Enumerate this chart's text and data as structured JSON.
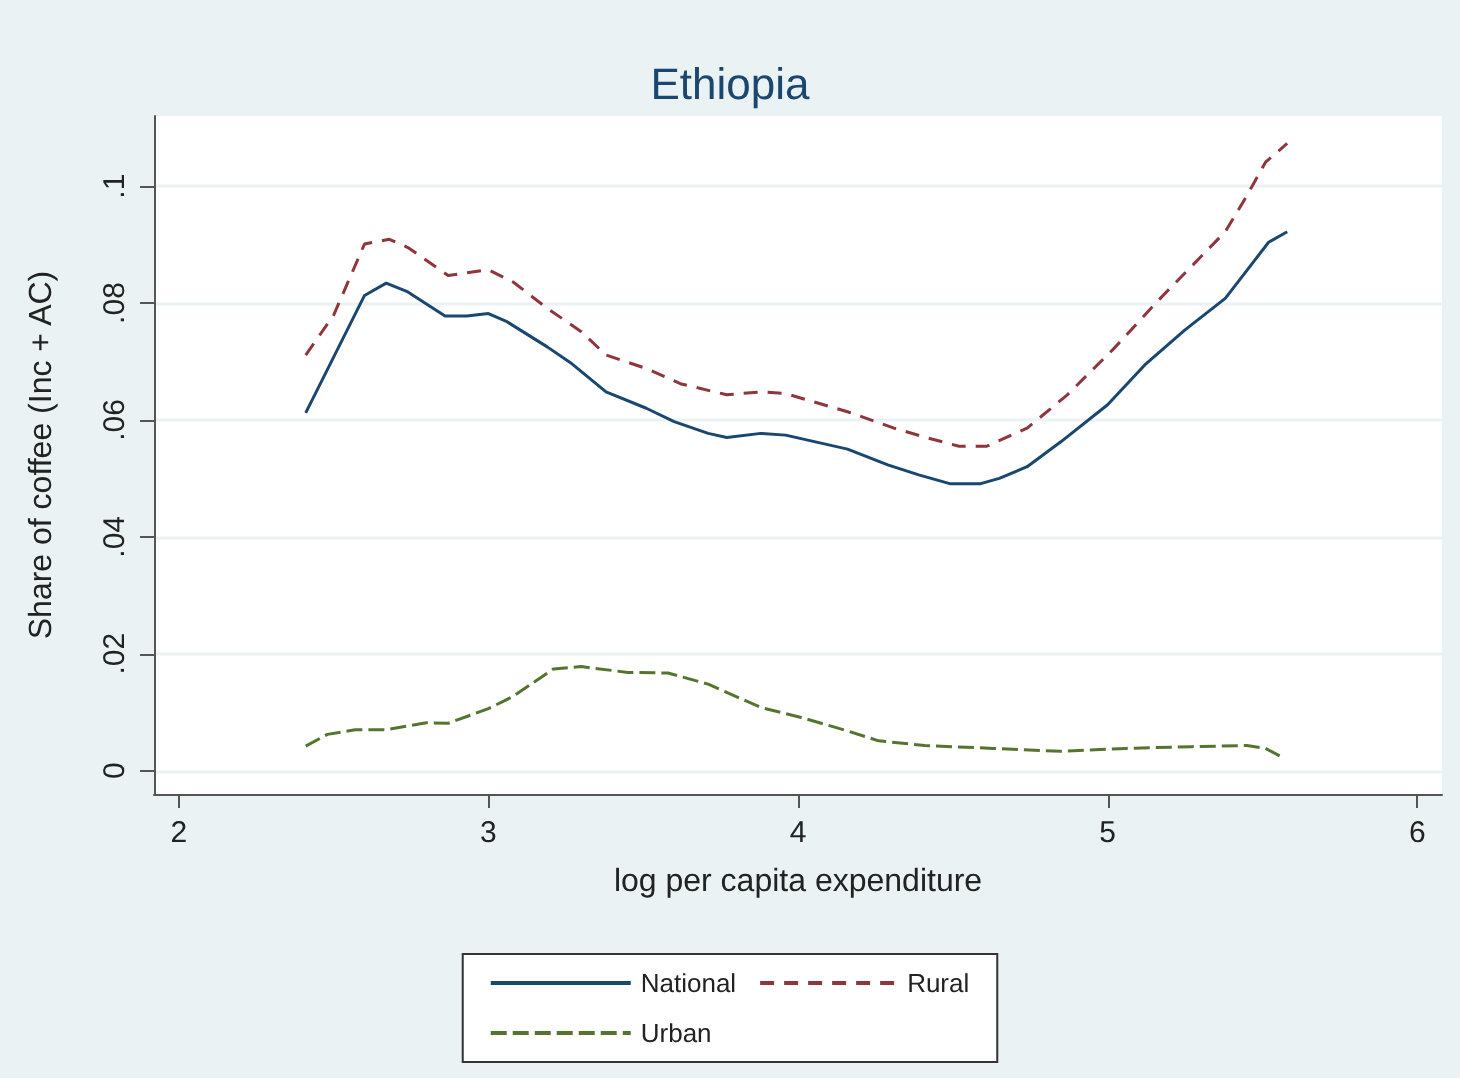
{
  "chart_data": {
    "type": "line",
    "title": "Ethiopia",
    "xlabel": "log per capita expenditure",
    "ylabel": "Share of coffee (Inc + AC)",
    "xlim": [
      1.92,
      6.08
    ],
    "xticks": [
      2,
      3,
      4,
      5,
      6
    ],
    "ylim": [
      -0.004,
      0.112
    ],
    "yticks": [
      {
        "value": 0,
        "label": "0"
      },
      {
        "value": 0.02,
        "label": ".02"
      },
      {
        "value": 0.04,
        "label": ".04"
      },
      {
        "value": 0.06,
        "label": ".06"
      },
      {
        "value": 0.08,
        "label": ".08"
      },
      {
        "value": 0.1,
        "label": ".1"
      }
    ],
    "grid": "y",
    "legend": "bottom",
    "marker": "none",
    "series": [
      {
        "name": "National",
        "color": "#1a476f",
        "line_style": "solid",
        "x": [
          2.41,
          2.6,
          2.67,
          2.74,
          2.86,
          2.93,
          3.0,
          3.06,
          3.19,
          3.27,
          3.38,
          3.51,
          3.6,
          3.71,
          3.77,
          3.88,
          3.96,
          4.16,
          4.29,
          4.39,
          4.49,
          4.59,
          4.65,
          4.74,
          4.85,
          5.0,
          5.12,
          5.25,
          5.38,
          5.45,
          5.52,
          5.58
        ],
        "values": [
          0.0612,
          0.0813,
          0.0834,
          0.0819,
          0.0778,
          0.0778,
          0.0782,
          0.0768,
          0.0725,
          0.0696,
          0.0648,
          0.062,
          0.0597,
          0.0577,
          0.057,
          0.0577,
          0.0574,
          0.055,
          0.0523,
          0.0506,
          0.0491,
          0.0491,
          0.05,
          0.052,
          0.0563,
          0.0626,
          0.0694,
          0.0754,
          0.0808,
          0.0856,
          0.0904,
          0.0922
        ]
      },
      {
        "name": "Rural",
        "color": "#90353b",
        "line_style": "dashed",
        "x": [
          2.41,
          2.5,
          2.6,
          2.68,
          2.74,
          2.87,
          3.0,
          3.08,
          3.19,
          3.3,
          3.38,
          3.51,
          3.62,
          3.77,
          3.88,
          3.96,
          4.16,
          4.31,
          4.42,
          4.52,
          4.61,
          4.74,
          4.87,
          5.02,
          5.17,
          5.38,
          5.45,
          5.51,
          5.58
        ],
        "values": [
          0.0711,
          0.0779,
          0.0901,
          0.0909,
          0.0895,
          0.0847,
          0.0857,
          0.0836,
          0.0791,
          0.0751,
          0.0711,
          0.0688,
          0.0662,
          0.0643,
          0.0648,
          0.0645,
          0.0614,
          0.0586,
          0.0569,
          0.0555,
          0.0555,
          0.0586,
          0.0643,
          0.0722,
          0.0808,
          0.0922,
          0.0984,
          0.1041,
          0.1073
        ]
      },
      {
        "name": "Urban",
        "color": "#55752f",
        "line_style": "longdash",
        "x": [
          2.41,
          2.48,
          2.57,
          2.67,
          2.8,
          2.87,
          3.0,
          3.08,
          3.21,
          3.3,
          3.45,
          3.58,
          3.71,
          3.88,
          4.01,
          4.16,
          4.26,
          4.41,
          4.63,
          4.85,
          5.06,
          5.27,
          5.45,
          5.51,
          5.56
        ],
        "values": [
          0.0042,
          0.0062,
          0.007,
          0.007,
          0.0082,
          0.0081,
          0.0106,
          0.0127,
          0.0174,
          0.0178,
          0.0168,
          0.0167,
          0.0148,
          0.0108,
          0.0091,
          0.0068,
          0.0051,
          0.0043,
          0.0038,
          0.0033,
          0.0038,
          0.0041,
          0.0043,
          0.0038,
          0.0024
        ]
      }
    ]
  }
}
